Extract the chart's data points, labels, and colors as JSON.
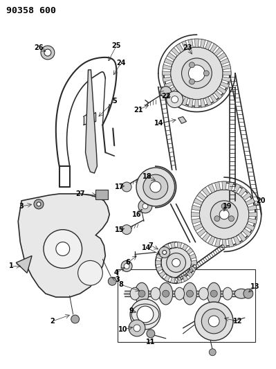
{
  "title": "90358 600",
  "bg_color": "#ffffff",
  "line_color": "#2a2a2a",
  "label_color": "#000000",
  "label_fontsize": 7,
  "fig_width": 3.99,
  "fig_height": 5.33,
  "dpi": 100
}
